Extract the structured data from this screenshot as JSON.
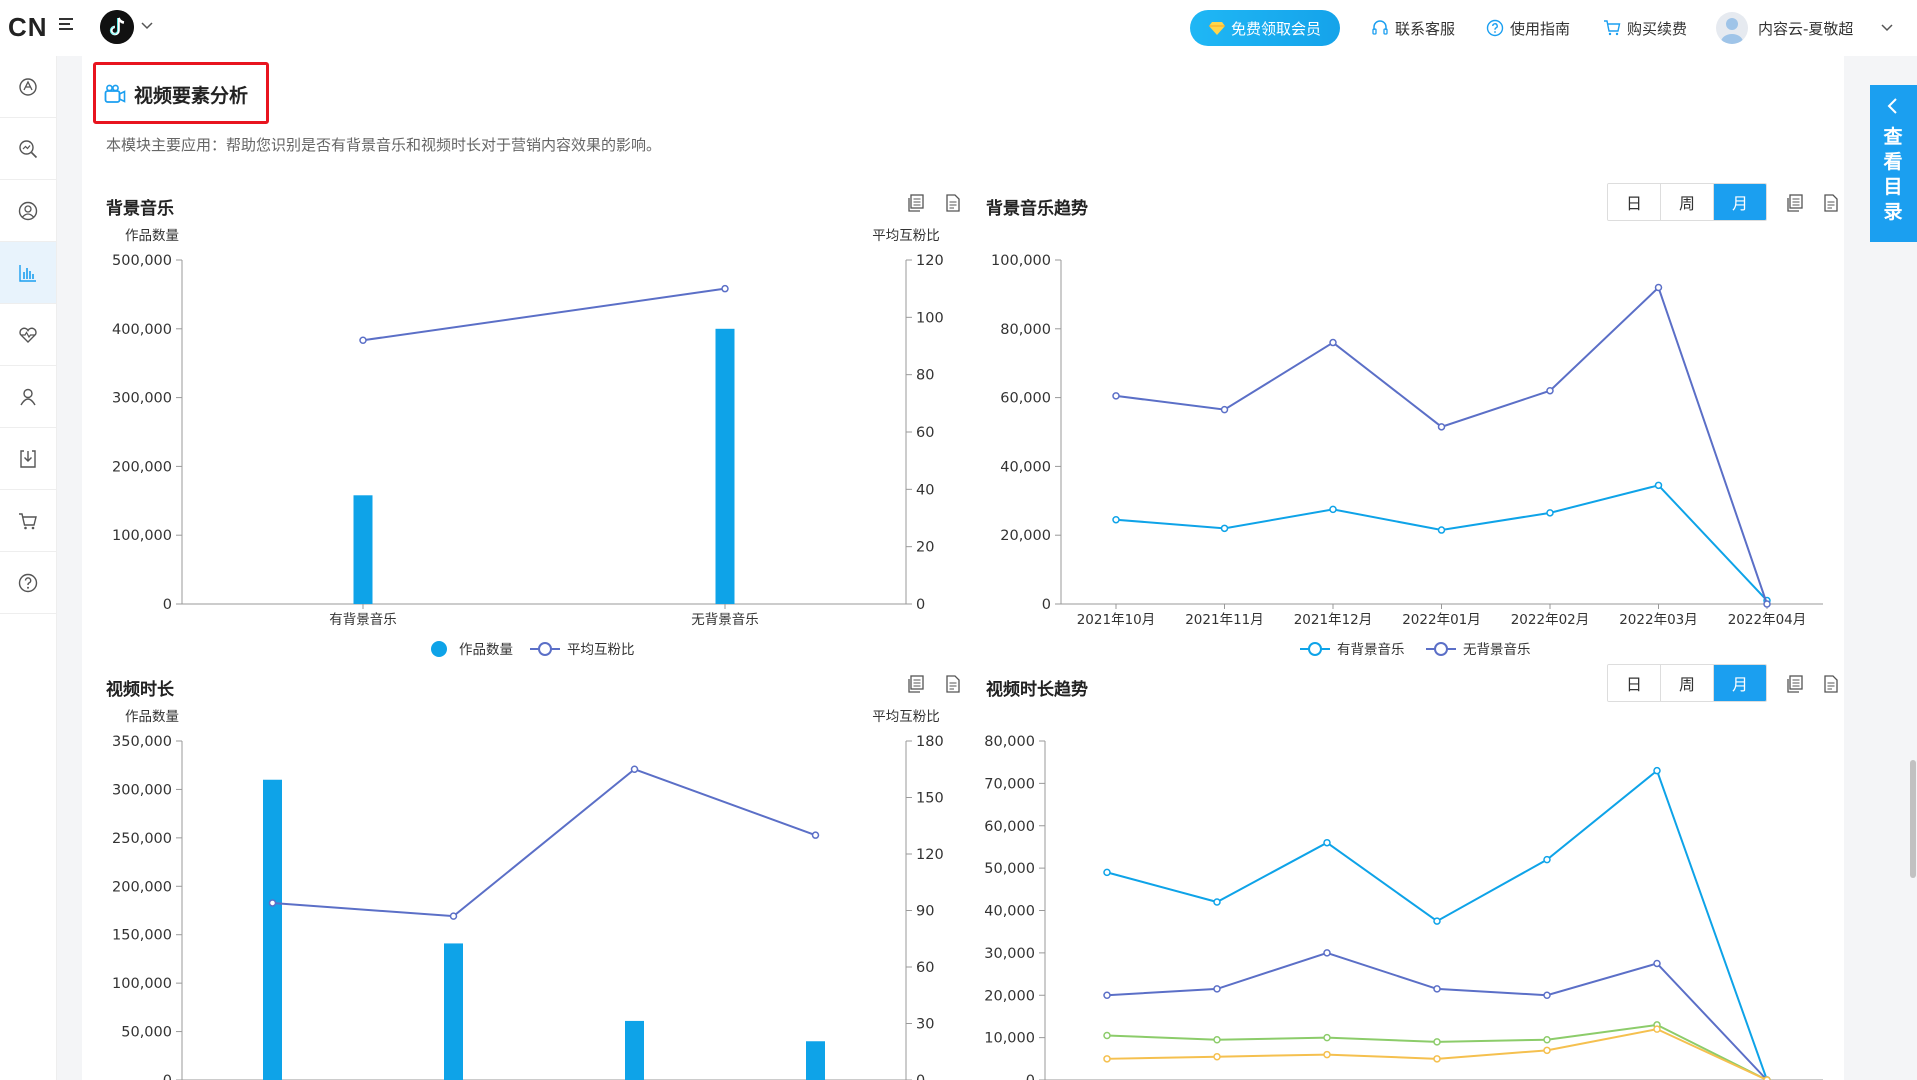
{
  "brand": {
    "logo": "CN"
  },
  "header": {
    "vip_button": "免费领取会员",
    "links": {
      "support": "联系客服",
      "guide": "使用指南",
      "purchase": "购买续费"
    },
    "user_name": "内容云-夏敬超"
  },
  "sidebar": {
    "items": [
      {
        "icon": "analysis-circle-icon"
      },
      {
        "icon": "search-analysis-icon"
      },
      {
        "icon": "account-icon"
      },
      {
        "icon": "bar-chart-icon",
        "active": true
      },
      {
        "icon": "heart-pulse-icon"
      },
      {
        "icon": "user-icon"
      },
      {
        "icon": "download-icon"
      },
      {
        "icon": "cart-icon"
      },
      {
        "icon": "help-icon"
      }
    ]
  },
  "page": {
    "title": "视频要素分析",
    "description": "本模块主要应用：帮助您识别是否有背景音乐和视频时长对于营销内容效果的影响。"
  },
  "sections": {
    "bgm": {
      "title": "背景音乐"
    },
    "bgm_trend": {
      "title": "背景音乐趋势"
    },
    "duration": {
      "title": "视频时长"
    },
    "duration_trend": {
      "title": "视频时长趋势"
    }
  },
  "period_toggle": {
    "options": [
      "日",
      "周",
      "月"
    ],
    "selected": "月"
  },
  "drawer": {
    "label": "查看目录"
  },
  "colors": {
    "bar": "#0ea3e8",
    "line_purple": "#5b6fc7",
    "line_blue": "#0ea3e8",
    "line_green": "#8ccc6a",
    "line_orange": "#f5c04f",
    "accent": "#1b9ff0"
  },
  "chart_data": [
    {
      "type": "bar",
      "id": "bgm",
      "categories": [
        "有背景音乐",
        "无背景音乐"
      ],
      "series": [
        {
          "name": "作品数量",
          "type": "bar",
          "axis": "left",
          "values": [
            158000,
            400000
          ]
        },
        {
          "name": "平均互粉比",
          "type": "line",
          "axis": "right",
          "values": [
            92,
            110
          ]
        }
      ],
      "ylabel": "作品数量",
      "y2label": "平均互粉比",
      "ylim": [
        0,
        500000
      ],
      "yticks": [
        "0",
        "100,000",
        "200,000",
        "300,000",
        "400,000",
        "500,000"
      ],
      "y2lim": [
        0,
        120
      ],
      "y2ticks": [
        "0",
        "20",
        "40",
        "60",
        "80",
        "100",
        "120"
      ],
      "legend": "bottom"
    },
    {
      "type": "line",
      "id": "bgm_trend",
      "categories": [
        "2021年10月",
        "2021年11月",
        "2021年12月",
        "2022年01月",
        "2022年02月",
        "2022年03月",
        "2022年04月"
      ],
      "series": [
        {
          "name": "有背景音乐",
          "values": [
            24500,
            22000,
            27500,
            21500,
            26500,
            34500,
            1000
          ]
        },
        {
          "name": "无背景音乐",
          "values": [
            60500,
            56500,
            76000,
            51500,
            62000,
            92000,
            0
          ]
        }
      ],
      "ylim": [
        0,
        100000
      ],
      "yticks": [
        "0",
        "20,000",
        "40,000",
        "60,000",
        "80,000",
        "100,000"
      ],
      "legend": "bottom"
    },
    {
      "type": "bar",
      "id": "duration",
      "categories": [
        "",
        "",
        "",
        ""
      ],
      "series": [
        {
          "name": "作品数量",
          "type": "bar",
          "axis": "left",
          "values": [
            310000,
            141000,
            61000,
            40000
          ]
        },
        {
          "name": "平均互粉比",
          "type": "line",
          "axis": "right",
          "values": [
            94,
            87,
            165,
            130
          ]
        }
      ],
      "ylabel": "作品数量",
      "y2label": "平均互粉比",
      "ylim": [
        0,
        350000
      ],
      "yticks": [
        "0",
        "50,000",
        "100,000",
        "150,000",
        "200,000",
        "250,000",
        "300,000",
        "350,000"
      ],
      "y2lim": [
        0,
        180
      ],
      "y2ticks": [
        "0",
        "30",
        "60",
        "90",
        "120",
        "150",
        "180"
      ]
    },
    {
      "type": "line",
      "id": "duration_trend",
      "categories": [
        "2021年10月",
        "2021年11月",
        "2021年12月",
        "2022年01月",
        "2022年02月",
        "2022年03月",
        "2022年04月"
      ],
      "series": [
        {
          "values": [
            49000,
            42000,
            56000,
            37500,
            52000,
            73000,
            0
          ]
        },
        {
          "values": [
            20000,
            21500,
            30000,
            21500,
            20000,
            27500,
            0
          ]
        },
        {
          "values": [
            10500,
            9500,
            10000,
            9000,
            9500,
            13000,
            0
          ]
        },
        {
          "values": [
            5000,
            5500,
            6000,
            5000,
            7000,
            12000,
            0
          ]
        }
      ],
      "ylim": [
        0,
        80000
      ],
      "yticks": [
        "0",
        "10,000",
        "20,000",
        "30,000",
        "40,000",
        "50,000",
        "60,000",
        "70,000",
        "80,000"
      ]
    }
  ]
}
